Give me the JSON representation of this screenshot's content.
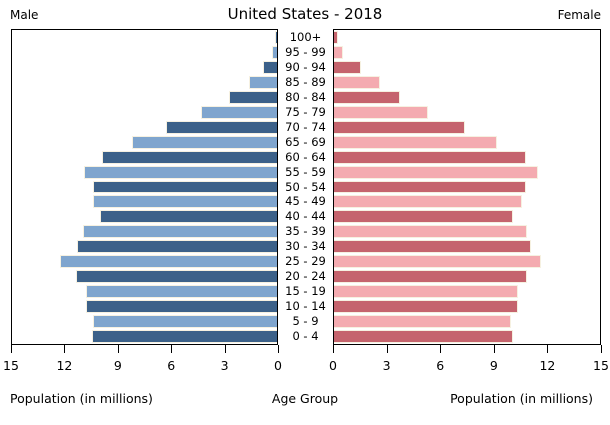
{
  "header": {
    "title": "United States - 2018",
    "male_label": "Male",
    "female_label": "Female"
  },
  "footer": {
    "left_xlabel": "Population (in millions)",
    "center_xlabel": "Age Group",
    "right_xlabel": "Population (in millions)"
  },
  "colors": {
    "male_dark": "#3C6189",
    "male_light": "#7FA5CE",
    "female_dark": "#C5646D",
    "female_light": "#F4ABB0",
    "bar_edge": "#F6F1E1",
    "frame": "#000000",
    "background": "#FFFFFF",
    "text": "#000000"
  },
  "chart_data": {
    "type": "bar",
    "subtype": "population-pyramid",
    "title": "United States - 2018",
    "units": "millions",
    "xlabel": "Population (in millions)",
    "center_label": "Age Group",
    "xlim": [
      0,
      15
    ],
    "x_ticks": [
      0,
      3,
      6,
      9,
      12,
      15
    ],
    "grid": false,
    "categories_top_down": [
      "100+",
      "95 - 99",
      "90 - 94",
      "85 - 89",
      "80 - 84",
      "75 - 79",
      "70 - 74",
      "65 - 69",
      "60 - 64",
      "55 - 59",
      "50 - 54",
      "45 - 49",
      "40 - 44",
      "35 - 39",
      "30 - 34",
      "25 - 29",
      "20 - 24",
      "15 - 19",
      "10 - 14",
      "5 - 9",
      "0 - 4"
    ],
    "series": [
      {
        "name": "Male",
        "side": "left",
        "values_top_down": [
          0.1,
          0.3,
          0.8,
          1.6,
          2.7,
          4.3,
          6.3,
          8.2,
          9.9,
          10.9,
          10.4,
          10.4,
          10.0,
          11.0,
          11.3,
          12.3,
          11.4,
          10.8,
          10.8,
          10.4,
          10.5
        ]
      },
      {
        "name": "Female",
        "side": "right",
        "values_top_down": [
          0.2,
          0.5,
          1.5,
          2.6,
          3.7,
          5.3,
          7.4,
          9.2,
          10.8,
          11.5,
          10.8,
          10.6,
          10.1,
          10.9,
          11.1,
          11.7,
          10.9,
          10.4,
          10.4,
          10.0,
          10.1
        ]
      }
    ]
  }
}
